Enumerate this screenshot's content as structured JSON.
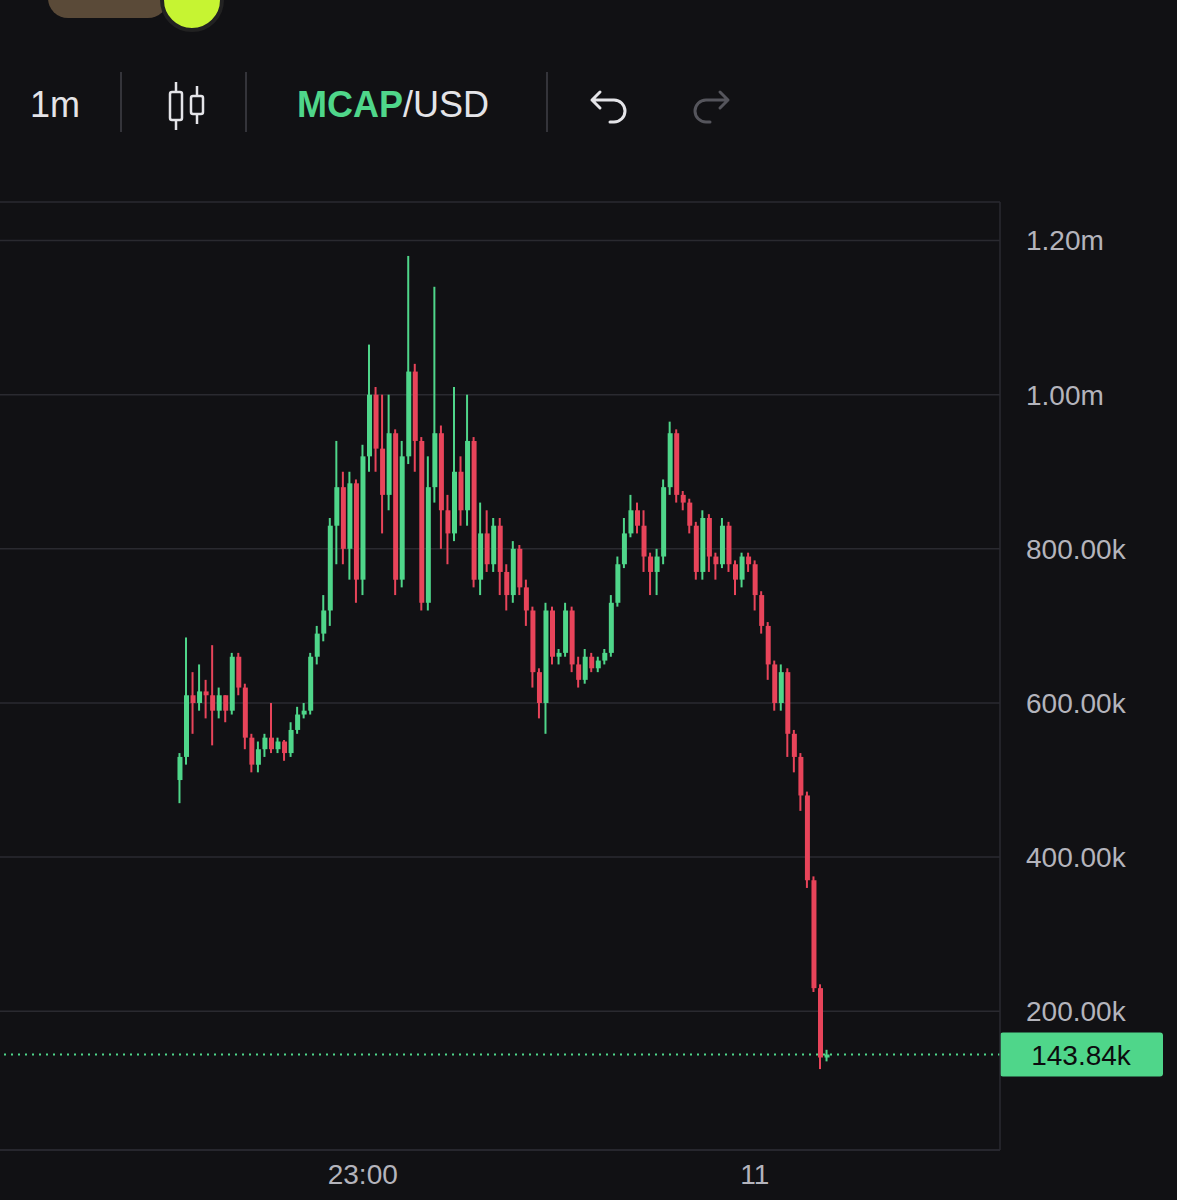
{
  "chart_data": {
    "type": "candlestick",
    "title": "MCAP/USD",
    "subtitle": "1m",
    "categories": [
      null,
      null,
      null,
      null,
      null,
      null,
      null,
      null,
      null,
      null,
      null,
      null,
      null,
      null,
      null,
      null,
      null,
      null,
      null,
      null,
      null,
      null,
      null,
      null,
      null,
      null,
      null,
      null,
      null,
      null,
      null,
      null,
      null,
      null,
      null,
      null,
      null,
      null,
      null,
      null,
      null,
      null,
      null,
      null,
      null,
      null,
      null,
      null,
      null,
      null,
      null,
      null,
      null,
      null,
      null,
      "23:00",
      null,
      null,
      null,
      null,
      null,
      null,
      null,
      null,
      null,
      null,
      null,
      null,
      null,
      null,
      null,
      null,
      null,
      null,
      null,
      null,
      null,
      null,
      null,
      null,
      null,
      null,
      null,
      null,
      null,
      null,
      null,
      null,
      null,
      null,
      null,
      null,
      null,
      null,
      null,
      null,
      null,
      null,
      null,
      null,
      null,
      null,
      null,
      null,
      null,
      null,
      null,
      null,
      null,
      null,
      null,
      null,
      null,
      null,
      null,
      "11",
      null,
      null,
      null,
      null,
      null,
      null,
      null,
      null,
      null,
      null,
      null,
      null,
      null,
      null,
      null,
      null,
      null,
      null,
      null,
      null,
      null,
      null,
      null,
      null,
      null,
      null,
      null,
      null,
      null,
      null,
      null,
      null,
      null,
      null,
      null,
      null,
      null
    ],
    "open": [
      null,
      null,
      null,
      null,
      null,
      null,
      null,
      null,
      null,
      null,
      null,
      null,
      null,
      null,
      null,
      null,
      null,
      null,
      null,
      null,
      null,
      null,
      null,
      null,
      null,
      null,
      null,
      500000,
      530000,
      610000,
      600000,
      615000,
      610000,
      590000,
      610000,
      590000,
      660000,
      620000,
      555000,
      520000,
      540000,
      555000,
      540000,
      550000,
      535000,
      565000,
      585000,
      590000,
      660000,
      690000,
      720000,
      830000,
      880000,
      800000,
      885000,
      760000,
      920000,
      1000000,
      930000,
      870000,
      950000,
      760000,
      920000,
      1030000,
      940000,
      730000,
      880000,
      950000,
      850000,
      820000,
      900000,
      850000,
      940000,
      760000,
      820000,
      780000,
      830000,
      770000,
      740000,
      800000,
      750000,
      720000,
      640000,
      600000,
      720000,
      660000,
      665000,
      720000,
      650000,
      630000,
      660000,
      645000,
      655000,
      665000,
      730000,
      780000,
      820000,
      850000,
      830000,
      790000,
      770000,
      790000,
      880000,
      950000,
      870000,
      860000,
      830000,
      770000,
      840000,
      790000,
      780000,
      830000,
      780000,
      760000,
      790000,
      780000,
      740000,
      700000,
      650000,
      600000,
      640000,
      560000,
      530000,
      480000,
      370000,
      230000,
      140000,
      null,
      null,
      null,
      null,
      null,
      null,
      null,
      null,
      null,
      null,
      null,
      null,
      null,
      null,
      null,
      null,
      null,
      null,
      null,
      null,
      null,
      null,
      null,
      null,
      null,
      null,
      null
    ],
    "high": [
      null,
      null,
      null,
      null,
      null,
      null,
      null,
      null,
      null,
      null,
      null,
      null,
      null,
      null,
      null,
      null,
      null,
      null,
      null,
      null,
      null,
      null,
      null,
      null,
      null,
      null,
      null,
      535000,
      685000,
      640000,
      650000,
      630000,
      675000,
      620000,
      610000,
      665000,
      665000,
      625000,
      560000,
      550000,
      560000,
      600000,
      555000,
      552000,
      575000,
      595000,
      600000,
      665000,
      700000,
      740000,
      840000,
      940000,
      900000,
      900000,
      890000,
      935000,
      1065000,
      1010000,
      1000000,
      1000000,
      955000,
      940000,
      1180000,
      1040000,
      945000,
      920000,
      1140000,
      960000,
      870000,
      1010000,
      920000,
      1000000,
      945000,
      860000,
      850000,
      840000,
      840000,
      780000,
      810000,
      805000,
      760000,
      725000,
      645000,
      730000,
      725000,
      670000,
      730000,
      725000,
      660000,
      670000,
      665000,
      660000,
      670000,
      740000,
      790000,
      840000,
      870000,
      860000,
      850000,
      795000,
      800000,
      890000,
      965000,
      955000,
      875000,
      865000,
      835000,
      850000,
      845000,
      795000,
      840000,
      835000,
      785000,
      795000,
      795000,
      785000,
      745000,
      705000,
      655000,
      650000,
      645000,
      565000,
      535000,
      485000,
      375000,
      235000,
      150000,
      null,
      null,
      null,
      null,
      null,
      null,
      null,
      null,
      null,
      null,
      null,
      null,
      null,
      null,
      null,
      null,
      null,
      null,
      null,
      null,
      null,
      null,
      null,
      null,
      null,
      null,
      null
    ],
    "low": [
      null,
      null,
      null,
      null,
      null,
      null,
      null,
      null,
      null,
      null,
      null,
      null,
      null,
      null,
      null,
      null,
      null,
      null,
      null,
      null,
      null,
      null,
      null,
      null,
      null,
      null,
      null,
      470000,
      520000,
      560000,
      590000,
      580000,
      545000,
      580000,
      575000,
      585000,
      610000,
      540000,
      510000,
      510000,
      530000,
      535000,
      535000,
      525000,
      530000,
      560000,
      580000,
      585000,
      650000,
      680000,
      700000,
      780000,
      780000,
      760000,
      730000,
      740000,
      900000,
      900000,
      820000,
      850000,
      740000,
      750000,
      910000,
      900000,
      720000,
      720000,
      860000,
      800000,
      780000,
      810000,
      830000,
      830000,
      750000,
      740000,
      770000,
      770000,
      740000,
      720000,
      730000,
      740000,
      700000,
      620000,
      580000,
      560000,
      650000,
      650000,
      660000,
      640000,
      620000,
      625000,
      640000,
      640000,
      650000,
      660000,
      725000,
      775000,
      815000,
      820000,
      770000,
      740000,
      740000,
      780000,
      870000,
      860000,
      850000,
      820000,
      760000,
      760000,
      770000,
      760000,
      775000,
      770000,
      740000,
      750000,
      770000,
      720000,
      690000,
      630000,
      590000,
      590000,
      530000,
      510000,
      460000,
      360000,
      225000,
      125000,
      135000,
      null,
      null,
      null,
      null,
      null,
      null,
      null,
      null,
      null,
      null,
      null,
      null,
      null,
      null,
      null,
      null,
      null,
      null,
      null,
      null,
      null,
      null,
      null,
      null,
      null,
      null,
      null
    ],
    "close": [
      null,
      null,
      null,
      null,
      null,
      null,
      null,
      null,
      null,
      null,
      null,
      null,
      null,
      null,
      null,
      null,
      null,
      null,
      null,
      null,
      null,
      null,
      null,
      null,
      null,
      null,
      null,
      530000,
      610000,
      600000,
      615000,
      610000,
      590000,
      610000,
      590000,
      660000,
      620000,
      555000,
      520000,
      540000,
      555000,
      540000,
      550000,
      535000,
      565000,
      585000,
      590000,
      660000,
      690000,
      720000,
      830000,
      880000,
      800000,
      885000,
      760000,
      920000,
      1000000,
      930000,
      870000,
      950000,
      760000,
      920000,
      1030000,
      940000,
      730000,
      880000,
      950000,
      850000,
      820000,
      900000,
      850000,
      940000,
      760000,
      820000,
      780000,
      830000,
      770000,
      740000,
      800000,
      750000,
      720000,
      640000,
      600000,
      720000,
      660000,
      665000,
      720000,
      650000,
      630000,
      660000,
      645000,
      655000,
      665000,
      730000,
      780000,
      820000,
      850000,
      830000,
      790000,
      770000,
      790000,
      880000,
      950000,
      870000,
      860000,
      830000,
      770000,
      840000,
      790000,
      780000,
      830000,
      780000,
      760000,
      790000,
      780000,
      740000,
      700000,
      650000,
      600000,
      640000,
      560000,
      530000,
      480000,
      370000,
      230000,
      140000,
      143840,
      null,
      null,
      null,
      null,
      null,
      null,
      null,
      null,
      null,
      null,
      null,
      null,
      null,
      null,
      null,
      null,
      null,
      null,
      null,
      null,
      null,
      null,
      null,
      null,
      null,
      null,
      null
    ],
    "color": [
      "#4fd68a",
      "#e8445a"
    ],
    "ylim": [
      20000,
      1250000
    ],
    "yticks": [
      {
        "value": 200000,
        "label": "200.00k"
      },
      {
        "value": 400000,
        "label": "400.00k"
      },
      {
        "value": 600000,
        "label": "600.00k"
      },
      {
        "value": 800000,
        "label": "800.00k"
      },
      {
        "value": 1000000,
        "label": "1.00m"
      },
      {
        "value": 1200000,
        "label": "1.20m"
      }
    ],
    "grid": true,
    "annotations": [
      {
        "value": 143840,
        "label": "143.84k"
      }
    ]
  }
}
